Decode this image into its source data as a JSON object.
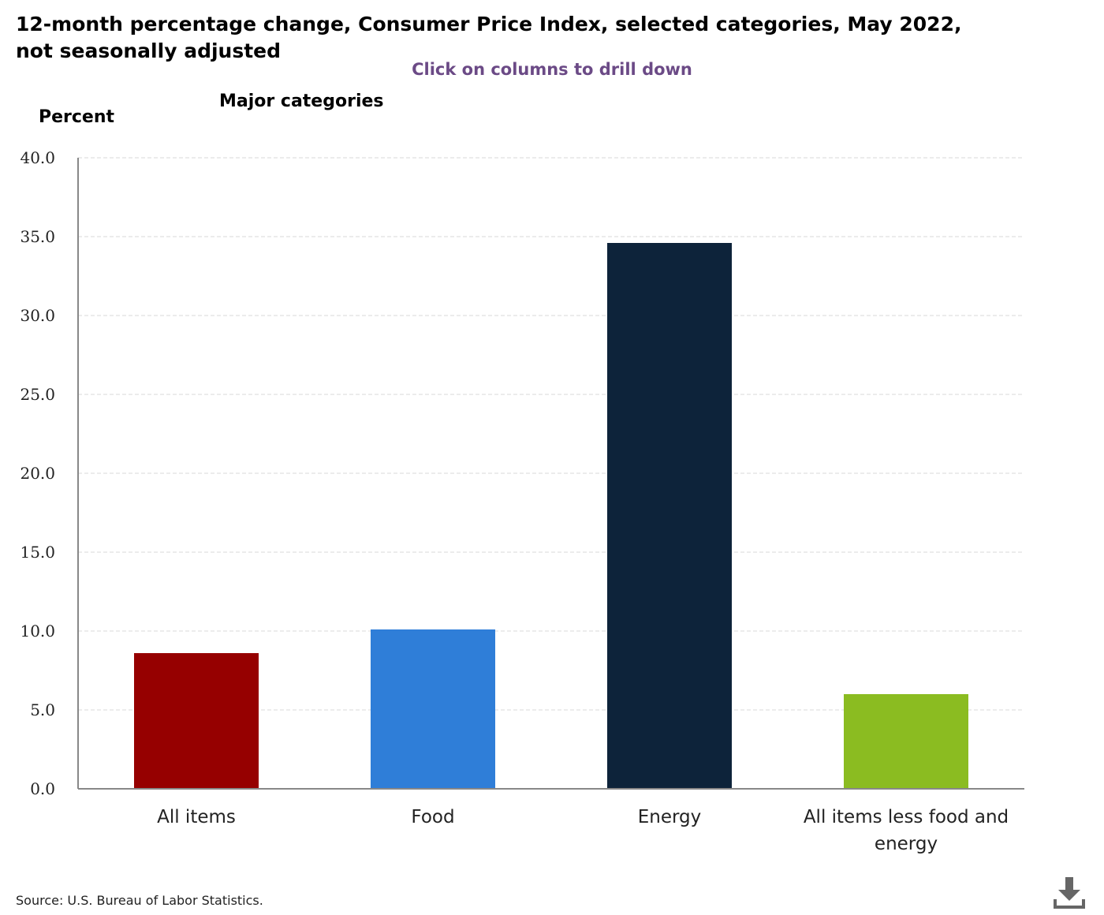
{
  "chart_data": {
    "type": "bar",
    "title": "12-month percentage change, Consumer Price Index, selected categories, May 2022, not seasonally adjusted",
    "subtitle": "Click on columns to drill down",
    "level_label": "Major categories",
    "ylabel": "Percent",
    "xlabel": "",
    "categories": [
      "All items",
      "Food",
      "Energy",
      "All items less food and energy"
    ],
    "category_lines": [
      [
        "All items"
      ],
      [
        "Food"
      ],
      [
        "Energy"
      ],
      [
        "All items less food and",
        "energy"
      ]
    ],
    "values": [
      8.6,
      10.1,
      34.6,
      6.0
    ],
    "colors": [
      "#960000",
      "#2f7ed8",
      "#0d233a",
      "#8bbc21"
    ],
    "ylim": [
      0,
      40
    ],
    "yticks": [
      "0.0",
      "5.0",
      "10.0",
      "15.0",
      "20.0",
      "25.0",
      "30.0",
      "35.0",
      "40.0"
    ],
    "grid": true,
    "grid_style": "dashed"
  },
  "source": "Source: U.S. Bureau of Labor Statistics.",
  "download_icon": "download-icon"
}
